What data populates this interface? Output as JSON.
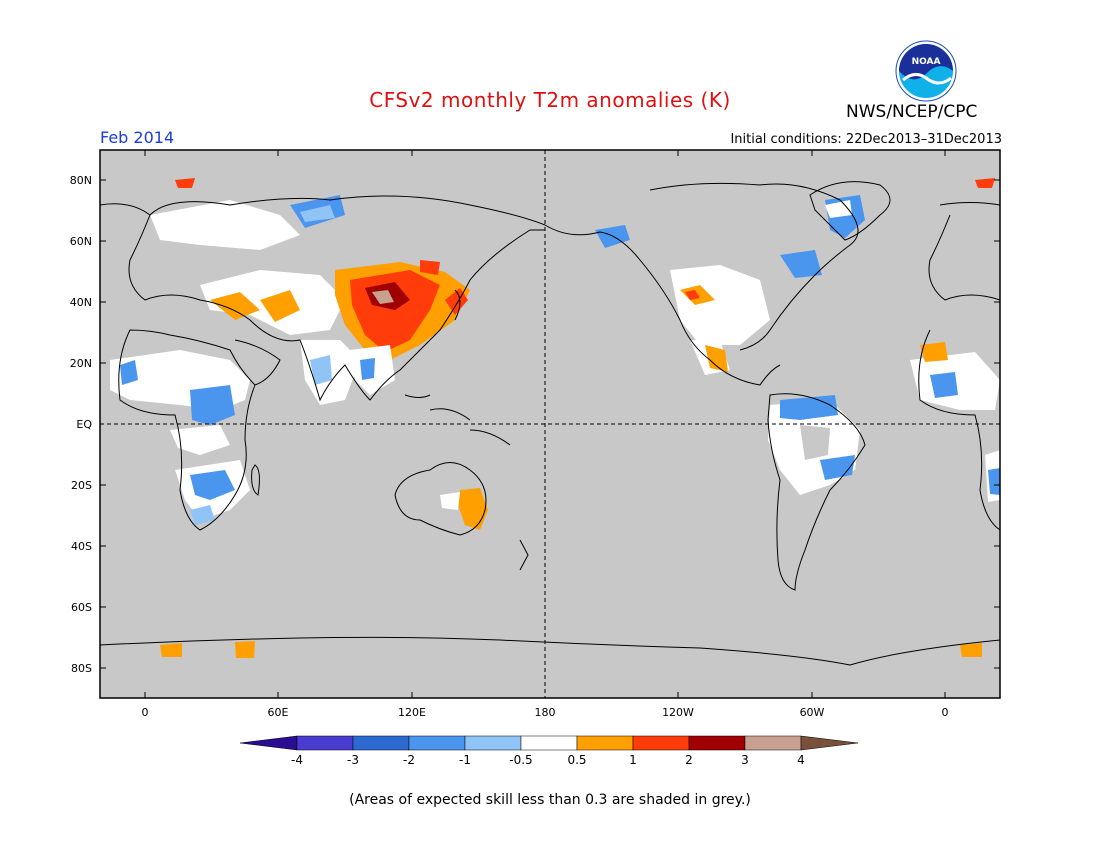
{
  "header": {
    "title": "CFSv2 monthly T2m anomalies (K)",
    "period": "Feb 2014",
    "initial_conditions": "Initial conditions: 22Dec2013–31Dec2013",
    "agency": "NWS/NCEP/CPC",
    "logo_text": "NOAA"
  },
  "axes": {
    "lat_labels": [
      "80N",
      "60N",
      "40N",
      "20N",
      "EQ",
      "20S",
      "40S",
      "60S",
      "80S"
    ],
    "lon_labels": [
      "0",
      "60E",
      "120E",
      "180",
      "120W",
      "60W",
      "0"
    ]
  },
  "colorbar": {
    "labels": [
      "-4",
      "-3",
      "-2",
      "-1",
      "-0.5",
      "0.5",
      "1",
      "2",
      "3",
      "4"
    ],
    "colors": [
      "#2a0d90",
      "#4a3cd0",
      "#2c6ad2",
      "#4a96ee",
      "#90c4f6",
      "#ffffff",
      "#ffa000",
      "#ff3c0a",
      "#a00000",
      "#c8a090",
      "#78503c"
    ]
  },
  "footnote": "(Areas of expected skill less than 0.3 are shaded in grey.)",
  "colors": {
    "title": "#e01010",
    "period": "#1a3cd8",
    "map_background": "#c8c8c8",
    "coastline": "#000000"
  }
}
